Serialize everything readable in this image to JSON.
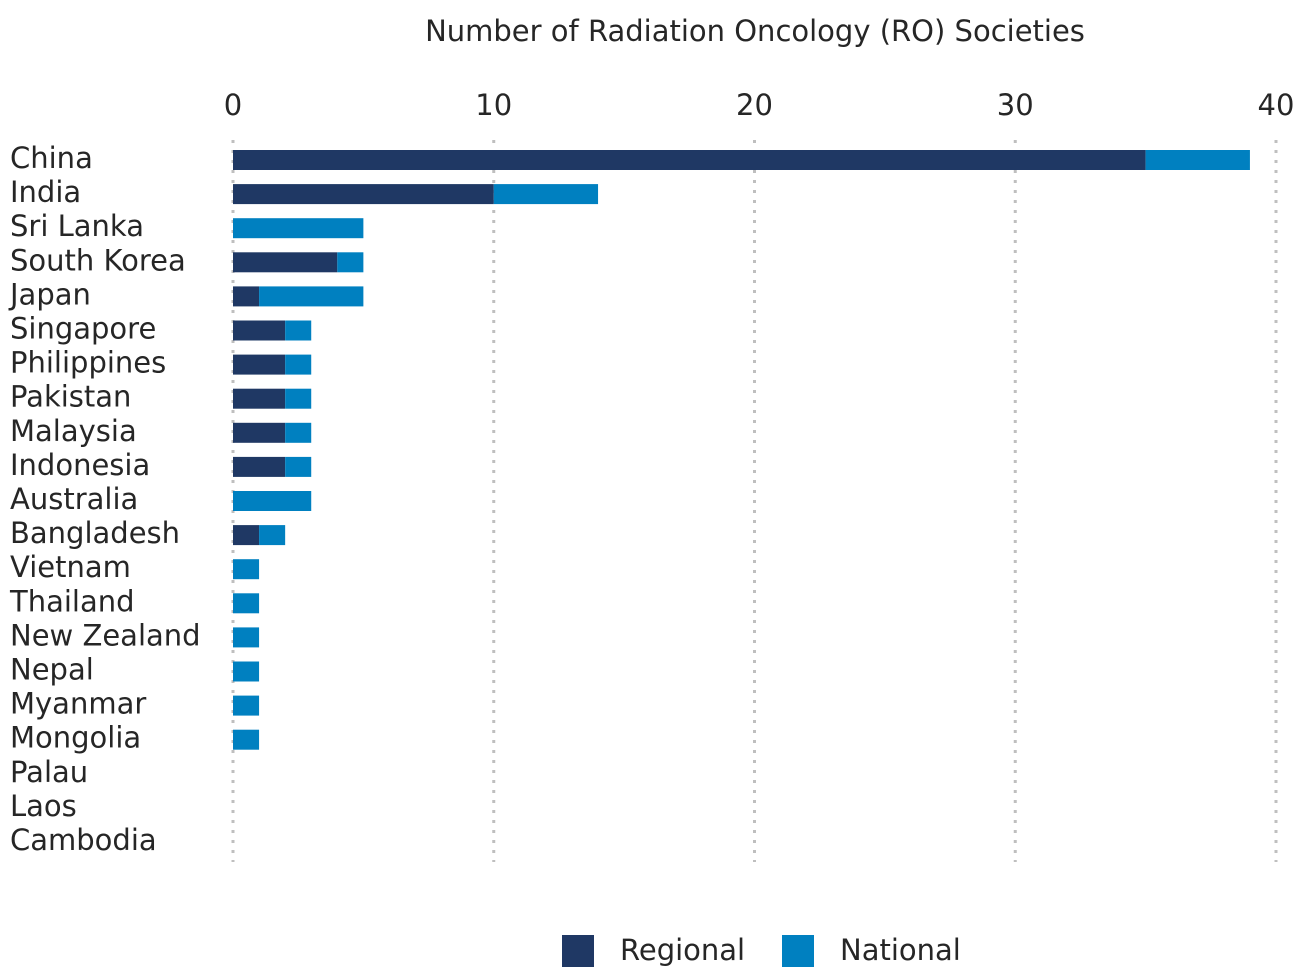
{
  "chart_data": {
    "type": "stacked_bar",
    "orientation": "horizontal",
    "title": "Number of Radiation Oncology (RO) Societies",
    "categories": [
      "China",
      "India",
      "Sri Lanka",
      "South Korea",
      "Japan",
      "Singapore",
      "Philippines",
      "Pakistan",
      "Malaysia",
      "Indonesia",
      "Australia",
      "Bangladesh",
      "Vietnam",
      "Thailand",
      "New Zealand",
      "Nepal",
      "Myanmar",
      "Mongolia",
      "Palau",
      "Laos",
      "Cambodia"
    ],
    "series": [
      {
        "name": "Regional",
        "color": "#1f3864",
        "values": [
          35,
          10,
          0,
          4,
          1,
          2,
          2,
          2,
          2,
          2,
          0,
          1,
          0,
          0,
          0,
          0,
          0,
          0,
          0,
          0,
          0
        ]
      },
      {
        "name": "National",
        "color": "#0080c0",
        "values": [
          4,
          4,
          5,
          1,
          4,
          1,
          1,
          1,
          1,
          1,
          3,
          1,
          1,
          1,
          1,
          1,
          1,
          1,
          0,
          0,
          0
        ]
      }
    ],
    "xlim": [
      0,
      40
    ],
    "xticks": [
      0,
      10,
      20,
      30,
      40
    ],
    "grid": true,
    "legend": "bottom"
  }
}
